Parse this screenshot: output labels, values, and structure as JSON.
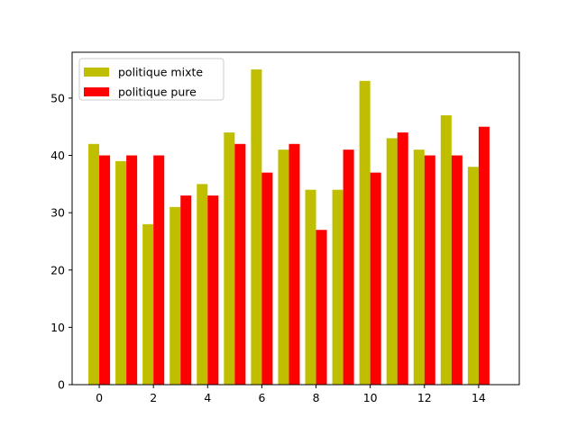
{
  "chart_data": {
    "type": "bar",
    "title": "",
    "xlabel": "",
    "ylabel": "",
    "x": [
      0,
      1,
      2,
      3,
      4,
      5,
      6,
      7,
      8,
      9,
      10,
      11,
      12,
      13,
      14
    ],
    "xlim": [
      -1,
      15.5
    ],
    "ylim": [
      0,
      58
    ],
    "xticks": [
      0,
      2,
      4,
      6,
      8,
      10,
      12,
      14
    ],
    "yticks": [
      0,
      10,
      20,
      30,
      40,
      50
    ],
    "grid": false,
    "legend_position": "top-left",
    "series": [
      {
        "name": "politique mixte",
        "color": "#bfbf00",
        "values": [
          42,
          39,
          28,
          31,
          35,
          44,
          55,
          41,
          34,
          34,
          53,
          43,
          41,
          47,
          38
        ]
      },
      {
        "name": "politique pure",
        "color": "#ff0000",
        "values": [
          40,
          40,
          40,
          33,
          33,
          42,
          37,
          42,
          27,
          41,
          37,
          44,
          40,
          40,
          45
        ]
      }
    ]
  }
}
